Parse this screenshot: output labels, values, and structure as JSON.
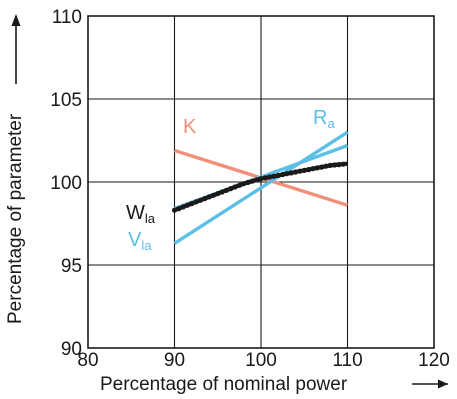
{
  "chart_data": {
    "type": "line",
    "xlabel": "Percentage of nominal power",
    "ylabel": "Percentage of parameter",
    "xlim": [
      80,
      120
    ],
    "ylim": [
      90,
      110
    ],
    "xticks": [
      "80",
      "90",
      "100",
      "110",
      "120"
    ],
    "yticks": [
      "90",
      "95",
      "100",
      "105",
      "110"
    ],
    "grid": true,
    "series": [
      {
        "name": "K",
        "label_main": "K",
        "label_sub": "",
        "color": "#f0907a",
        "x": [
          90,
          110
        ],
        "y": [
          101.9,
          98.6
        ]
      },
      {
        "name": "Ra",
        "label_main": "R",
        "label_sub": "a",
        "color": "#5bbfe6",
        "x": [
          90,
          110
        ],
        "y": [
          96.3,
          103.0
        ]
      },
      {
        "name": "Vla",
        "label_main": "V",
        "label_sub": "la",
        "color": "#5bbfe6",
        "x": [
          90,
          110
        ],
        "y": [
          98.4,
          102.2
        ]
      },
      {
        "name": "Wla",
        "label_main": "W",
        "label_sub": "la",
        "color": "#1a1a1a",
        "x": [
          90,
          92,
          94,
          96,
          98,
          100,
          102,
          104,
          106,
          108,
          110
        ],
        "y": [
          98.3,
          98.7,
          99.1,
          99.5,
          99.9,
          100.2,
          100.4,
          100.6,
          100.8,
          101.0,
          101.1
        ]
      }
    ]
  }
}
